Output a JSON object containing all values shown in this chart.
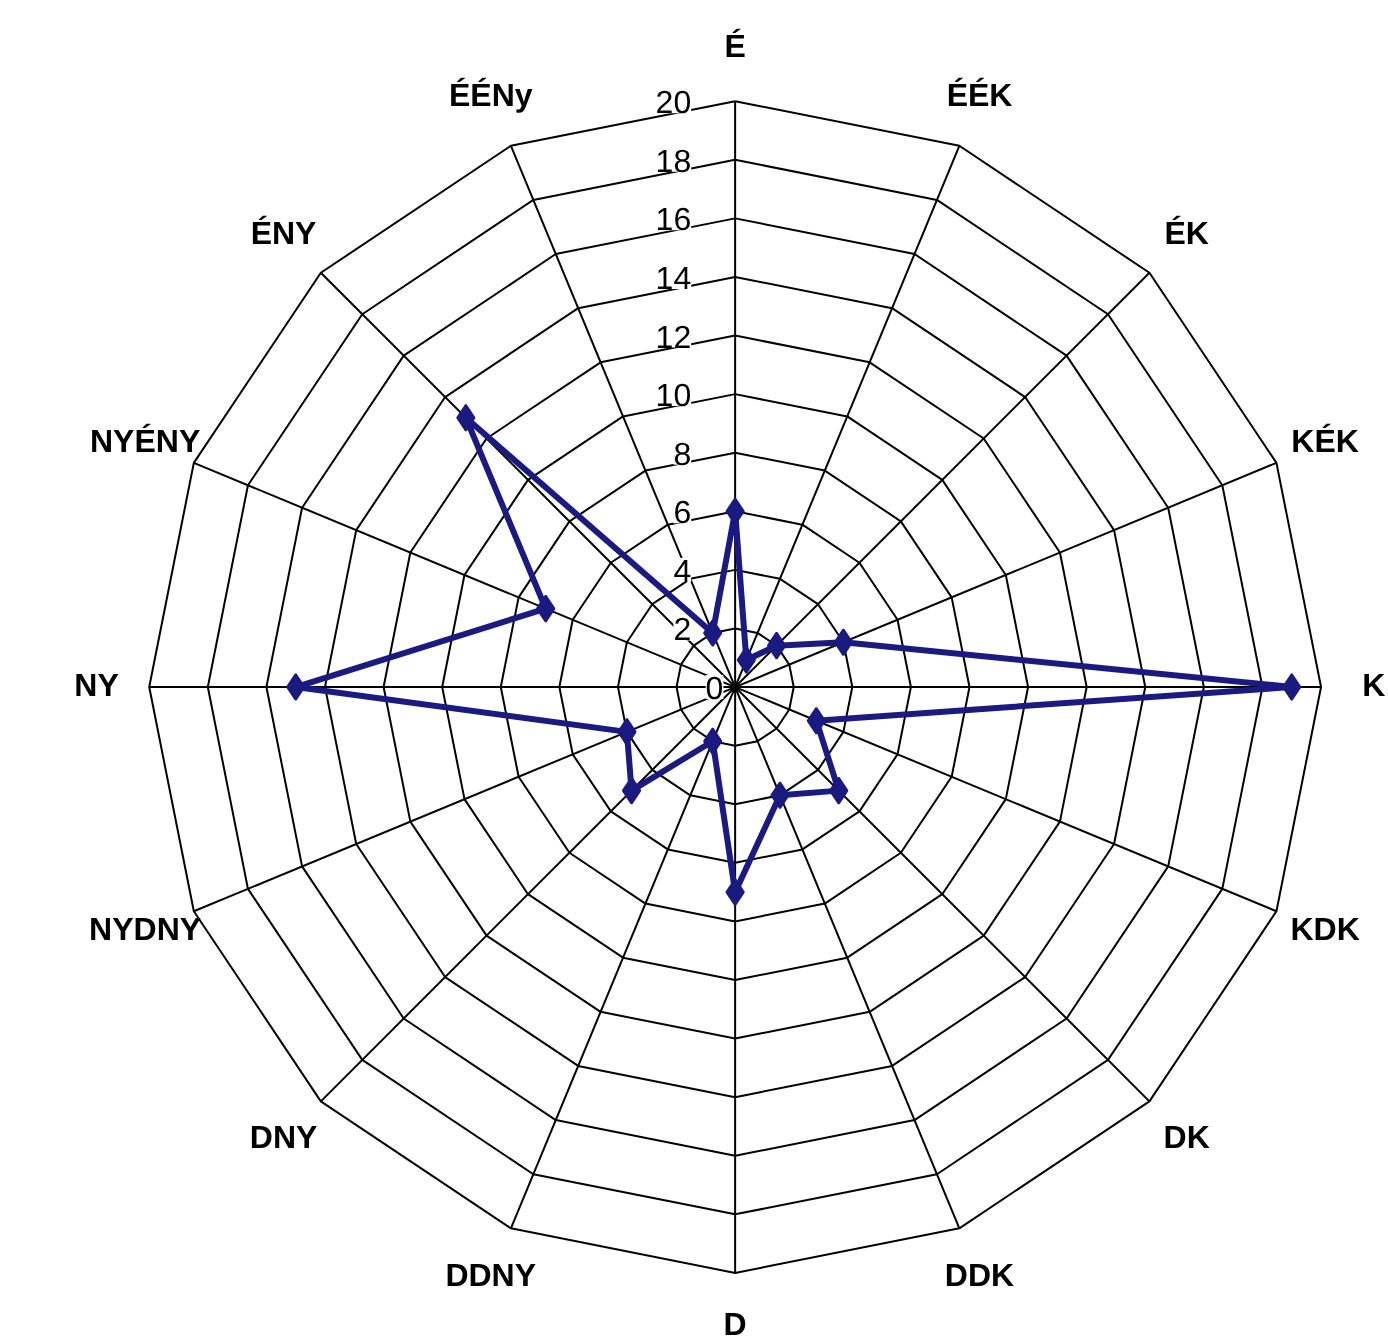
{
  "chart_data": {
    "type": "radar",
    "categories": [
      "É",
      "ÉÉK",
      "ÉK",
      "KÉK",
      "K",
      "KDK",
      "DK",
      "DDK",
      "D",
      "DDNY",
      "DNY",
      "NYDNY",
      "NY",
      "NYÉNY",
      "ÉNY",
      "ÉÉNy"
    ],
    "series": [
      {
        "color": "#1a1a80",
        "values": [
          6,
          1,
          2,
          4,
          19,
          3,
          5,
          4,
          7,
          2,
          5,
          4,
          15,
          7,
          13,
          2
        ]
      }
    ],
    "ylim": [
      0,
      20
    ],
    "yticks": [
      0,
      2,
      4,
      6,
      8,
      10,
      12,
      14,
      16,
      18,
      20
    ],
    "marker": "diamond",
    "line_style": "solid",
    "grid": true
  }
}
